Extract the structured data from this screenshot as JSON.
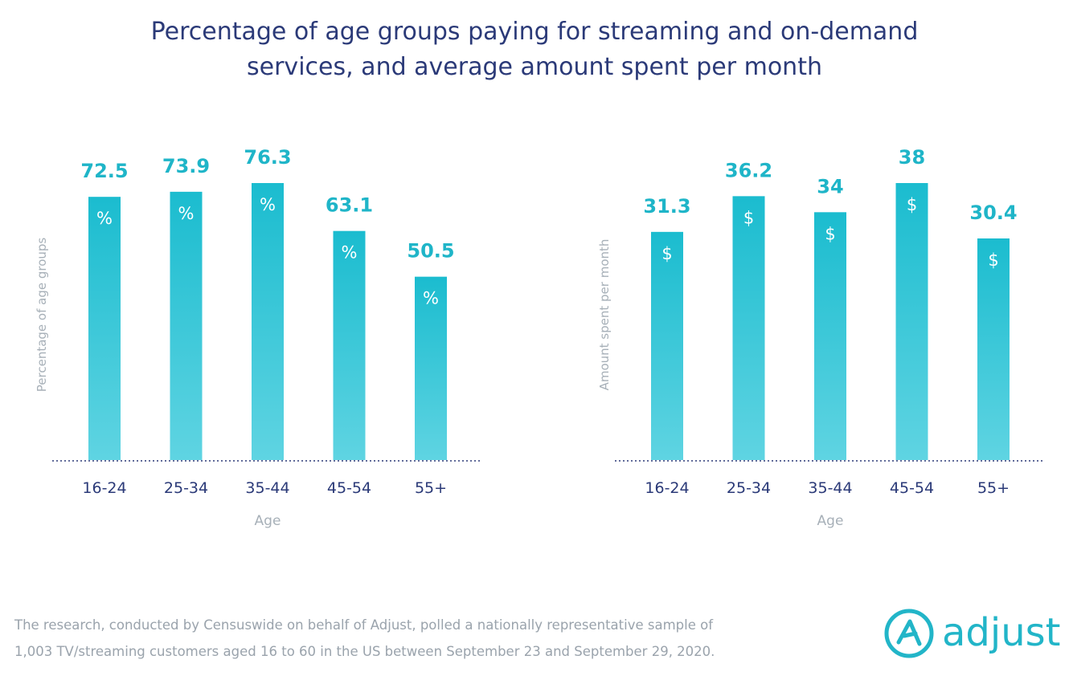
{
  "title": {
    "line1": "Percentage of age groups paying for streaming and on-demand",
    "line2": "services, and average amount spent per month"
  },
  "colors": {
    "bar_top": "#1bbccf",
    "bar_bottom": "#5fd4e2",
    "value_label": "#1fb5c8",
    "tick_label": "#2b3a78",
    "axis_label": "#a7b0b8"
  },
  "chart_data": [
    {
      "type": "bar",
      "categories": [
        "16-24",
        "25-34",
        "35-44",
        "45-54",
        "55+"
      ],
      "values": [
        72.5,
        73.9,
        76.3,
        63.1,
        50.5
      ],
      "value_labels": [
        "72.5",
        "73.9",
        "76.3",
        "63.1",
        "50.5"
      ],
      "bar_symbol": "%",
      "xlabel": "Age",
      "ylabel": "Percentage of age groups",
      "ylim": [
        0,
        76.3
      ]
    },
    {
      "type": "bar",
      "categories": [
        "16-24",
        "25-34",
        "35-44",
        "45-54",
        "55+"
      ],
      "values": [
        31.3,
        36.2,
        34,
        38,
        30.4
      ],
      "value_labels": [
        "31.3",
        "36.2",
        "34",
        "38",
        "30.4"
      ],
      "bar_symbol": "$",
      "xlabel": "Age",
      "ylabel": "Amount spent per month",
      "ylim": [
        0,
        38
      ]
    }
  ],
  "footnote": {
    "line1": "The research, conducted by Censuswide on behalf of Adjust, polled a nationally representative sample of",
    "line2": "1,003 TV/streaming customers aged 16 to 60 in the US between September 23 and September 29, 2020."
  },
  "logo": {
    "text": "adjust"
  }
}
